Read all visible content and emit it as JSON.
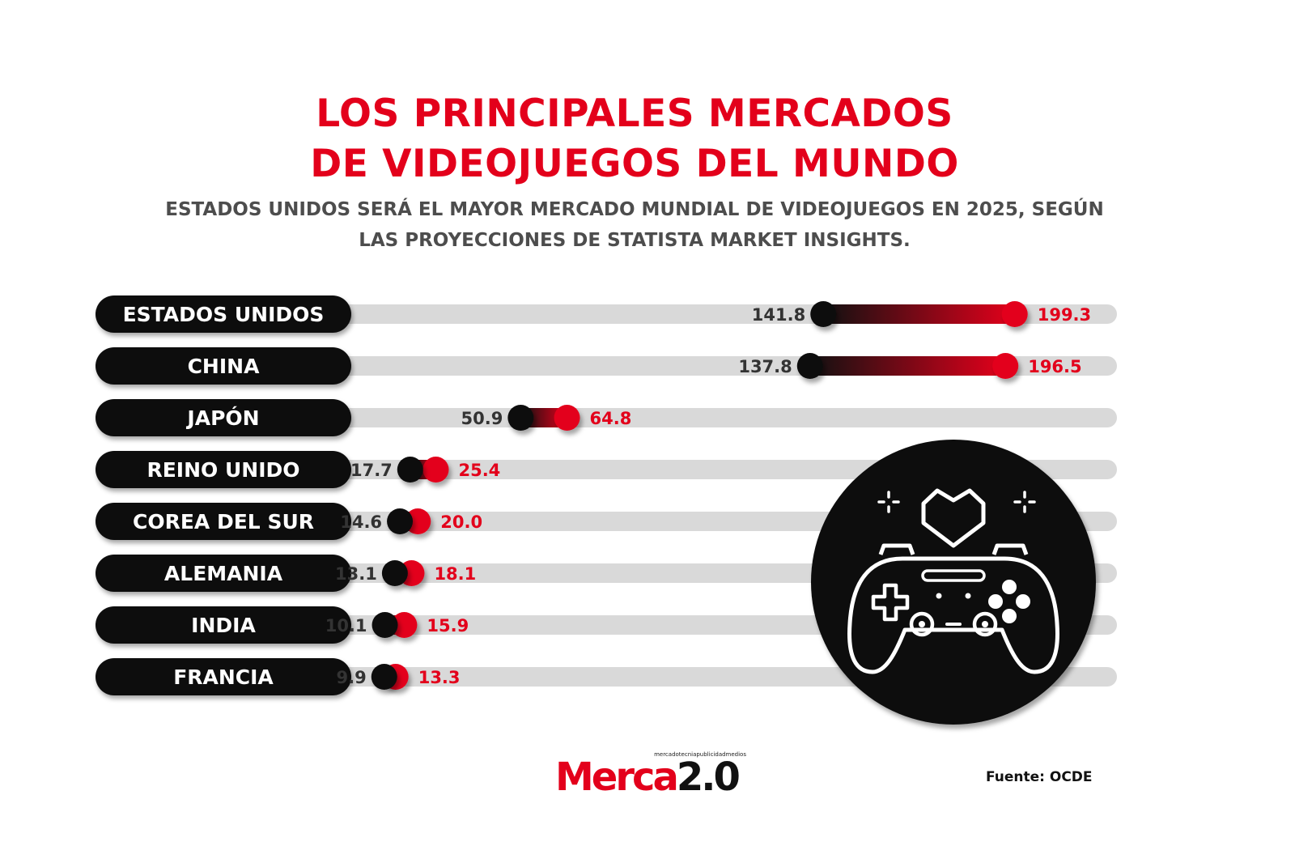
{
  "header": {
    "title_line1": "LOS PRINCIPALES MERCADOS",
    "title_line2": "DE VIDEOJUEGOS DEL MUNDO",
    "subtitle_line1": "ESTADOS UNIDOS SERÁ EL MAYOR MERCADO MUNDIAL DE VIDEOJUEGOS EN 2025, SEGÚN",
    "subtitle_line2": "LAS PROYECCIONES DE STATISTA MARKET INSIGHTS."
  },
  "colors": {
    "accent": "#e3001b",
    "dark": "#111111",
    "track": "#d9d9d9",
    "subtitle": "#4d4d4d"
  },
  "chart_data": {
    "type": "dumbbell",
    "title": "LOS PRINCIPALES MERCADOS DE VIDEOJUEGOS DEL MUNDO",
    "categories": [
      "ESTADOS UNIDOS",
      "CHINA",
      "JAPÓN",
      "REINO UNIDO",
      "COREA DEL SUR",
      "ALEMANIA",
      "INDIA",
      "FRANCIA"
    ],
    "series": [
      {
        "color": "#111111",
        "values": [
          141.8,
          137.8,
          50.9,
          17.7,
          14.6,
          13.1,
          10.1,
          9.9
        ]
      },
      {
        "color": "#e3001b",
        "values": [
          199.3,
          196.5,
          64.8,
          25.4,
          20.0,
          18.1,
          15.9,
          13.3
        ]
      }
    ],
    "labels_start": [
      "141.8",
      "137.8",
      "50.9",
      "17.7",
      "14.6",
      "13.1",
      "10.1",
      "9.9"
    ],
    "labels_end": [
      "199.3",
      "196.5",
      "64.8",
      "25.4",
      "20.0",
      "18.1",
      "15.9",
      "13.3"
    ],
    "xlim": [
      0,
      230
    ],
    "grid": false,
    "legend": "none"
  },
  "illustration": {
    "icon": "gamepad-heart-icon"
  },
  "footer": {
    "logo_tagline": "mercadotecniapublicidadmedios",
    "logo_word": "Merca",
    "logo_version": "2.0",
    "source": "Fuente: OCDE"
  }
}
